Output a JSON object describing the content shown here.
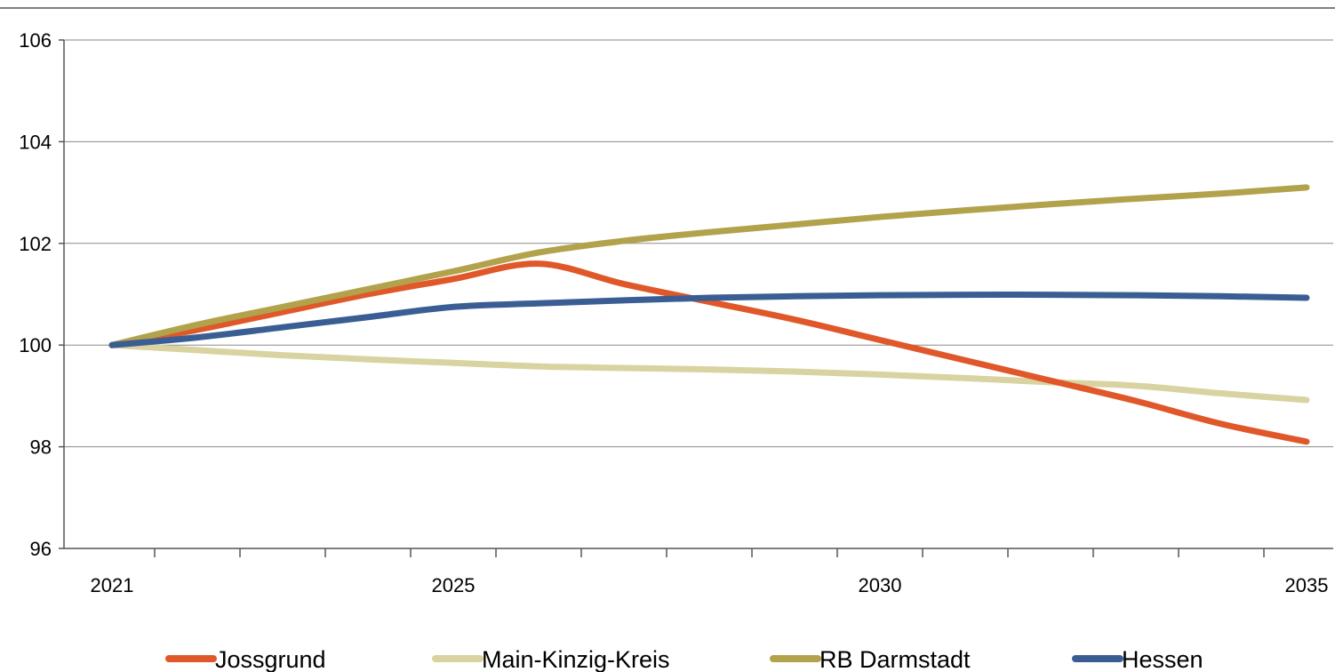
{
  "chart_data": {
    "type": "line",
    "title": "",
    "xlabel": "",
    "ylabel": "",
    "xlim": [
      2021,
      2035
    ],
    "ylim": [
      96,
      106
    ],
    "x_ticks": [
      "2021",
      "2025",
      "2030",
      "2035"
    ],
    "y_ticks": [
      "96",
      "98",
      "100",
      "102",
      "104",
      "106"
    ],
    "grid": "horizontal",
    "legend_position": "bottom",
    "x": [
      2021,
      2022,
      2023,
      2024,
      2025,
      2026,
      2027,
      2028,
      2029,
      2030,
      2031,
      2032,
      2033,
      2034,
      2035
    ],
    "series": [
      {
        "name": "Jossgrund",
        "color": "#E0582A",
        "values": [
          100.0,
          100.3,
          100.65,
          101.0,
          101.3,
          101.6,
          101.2,
          100.85,
          100.5,
          100.1,
          99.7,
          99.3,
          98.9,
          98.45,
          98.1
        ]
      },
      {
        "name": "Main-Kinzig-Kreis",
        "color": "#D8D3A0",
        "values": [
          100.0,
          99.9,
          99.8,
          99.72,
          99.65,
          99.58,
          99.55,
          99.52,
          99.48,
          99.42,
          99.35,
          99.27,
          99.2,
          99.05,
          98.92
        ]
      },
      {
        "name": "RB Darmstadt",
        "color": "#B2A24B",
        "values": [
          100.0,
          100.4,
          100.75,
          101.1,
          101.45,
          101.82,
          102.05,
          102.22,
          102.37,
          102.52,
          102.65,
          102.77,
          102.88,
          102.98,
          103.1
        ]
      },
      {
        "name": "Hessen",
        "color": "#3A5E94",
        "values": [
          100.0,
          100.15,
          100.35,
          100.55,
          100.75,
          100.82,
          100.88,
          100.93,
          100.96,
          100.98,
          100.99,
          100.99,
          100.98,
          100.96,
          100.93
        ]
      }
    ]
  }
}
